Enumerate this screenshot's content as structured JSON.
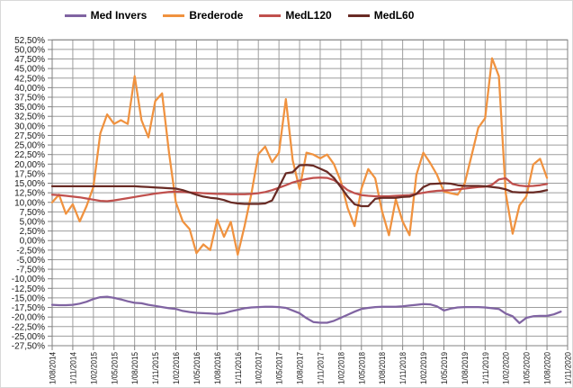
{
  "chart_data": {
    "type": "line",
    "title": "",
    "xlabel": "",
    "ylabel": "",
    "grid": true,
    "legend_position": "top",
    "y_axis": {
      "min": -27.5,
      "max": 52.5,
      "step": 2.5,
      "tick_labels": [
        "52,50%",
        "50,00%",
        "47,50%",
        "45,00%",
        "42,50%",
        "40,00%",
        "37,50%",
        "35,00%",
        "32,50%",
        "30,00%",
        "27,50%",
        "25,00%",
        "22,50%",
        "20,00%",
        "17,50%",
        "15,00%",
        "12,50%",
        "10,00%",
        "7,50%",
        "5,00%",
        "2,50%",
        "0,00%",
        "-2,50%",
        "-5,00%",
        "-7,50%",
        "-10,00%",
        "-12,50%",
        "-15,00%",
        "-17,50%",
        "-20,00%",
        "-22,50%",
        "-25,00%",
        "-27,50%"
      ]
    },
    "x_axis": {
      "unit": "monthly",
      "total_slots": 76,
      "months_per_tick": 3,
      "tick_labels": [
        "1/08/2014",
        "1/11/2014",
        "1/02/2015",
        "1/05/2015",
        "1/08/2015",
        "1/11/2015",
        "1/02/2016",
        "1/05/2016",
        "1/08/2016",
        "1/11/2016",
        "1/02/2017",
        "1/05/2017",
        "1/08/2017",
        "1/11/2017",
        "1/02/2018",
        "1/05/2018",
        "1/08/2018",
        "1/11/2018",
        "1/02/2019",
        "1/05/2019",
        "1/08/2019",
        "1/11/2019",
        "1/02/2020",
        "1/05/2020",
        "1/08/2020",
        "1/11/2020"
      ]
    },
    "series": [
      {
        "name": "Med Invers",
        "color": "#8064A2",
        "values": [
          -16.8,
          -16.9,
          -16.9,
          -16.8,
          -16.5,
          -16.0,
          -15.3,
          -14.8,
          -14.7,
          -15.0,
          -15.4,
          -15.9,
          -16.3,
          -16.4,
          -16.8,
          -17.1,
          -17.4,
          -17.7,
          -17.9,
          -18.4,
          -18.7,
          -18.9,
          -19.0,
          -19.1,
          -19.2,
          -19.0,
          -18.5,
          -18.1,
          -17.7,
          -17.5,
          -17.4,
          -17.3,
          -17.3,
          -17.4,
          -17.6,
          -18.3,
          -19.0,
          -20.3,
          -21.3,
          -21.5,
          -21.5,
          -21.0,
          -20.2,
          -19.4,
          -18.6,
          -17.9,
          -17.6,
          -17.4,
          -17.3,
          -17.3,
          -17.3,
          -17.2,
          -17.0,
          -16.8,
          -16.6,
          -16.7,
          -17.2,
          -18.3,
          -17.8,
          -17.5,
          -17.4,
          -17.4,
          -17.4,
          -17.5,
          -17.7,
          -17.9,
          -19.1,
          -19.8,
          -21.6,
          -20.2,
          -19.8,
          -19.7,
          -19.7,
          -19.3,
          -18.6
        ]
      },
      {
        "name": "Brederode",
        "color": "#F0923F",
        "values": [
          10.0,
          12.0,
          7.0,
          9.5,
          5.0,
          9.0,
          14.0,
          28.0,
          33.0,
          30.5,
          31.5,
          30.5,
          43.0,
          31.5,
          27.0,
          36.5,
          38.5,
          23.0,
          10.0,
          5.0,
          3.0,
          -3.3,
          -1.0,
          -2.5,
          5.5,
          1.0,
          4.9,
          -3.7,
          3.8,
          12.4,
          22.6,
          24.6,
          20.5,
          23.0,
          37.0,
          21.0,
          13.5,
          23.0,
          22.5,
          21.5,
          22.5,
          20.0,
          15.5,
          8.5,
          3.8,
          13.6,
          18.7,
          16.3,
          7.7,
          1.4,
          10.8,
          5.0,
          1.4,
          17.2,
          23.0,
          20.3,
          17.2,
          12.8,
          12.4,
          12.0,
          14.8,
          22.0,
          29.5,
          32.0,
          47.7,
          43.0,
          12.4,
          1.8,
          9.2,
          11.6,
          19.9,
          21.4,
          16.4
        ]
      },
      {
        "name": "MedL120",
        "color": "#C0504D",
        "values": [
          12.0,
          11.9,
          11.7,
          11.5,
          11.3,
          11.0,
          10.7,
          10.4,
          10.3,
          10.5,
          10.8,
          11.1,
          11.4,
          11.7,
          12.0,
          12.3,
          12.5,
          12.7,
          12.8,
          12.7,
          12.6,
          12.5,
          12.4,
          12.3,
          12.2,
          12.2,
          12.1,
          12.1,
          12.1,
          12.2,
          12.4,
          12.7,
          13.2,
          13.8,
          14.5,
          15.2,
          15.7,
          16.1,
          16.4,
          16.5,
          16.4,
          15.8,
          14.6,
          13.2,
          12.4,
          11.9,
          11.7,
          11.6,
          11.6,
          11.6,
          11.7,
          11.8,
          11.9,
          12.2,
          12.5,
          12.8,
          13.0,
          13.1,
          13.2,
          13.4,
          13.6,
          13.8,
          14.0,
          14.1,
          14.6,
          16.0,
          16.3,
          14.8,
          14.4,
          14.2,
          14.3,
          14.5,
          14.8
        ]
      },
      {
        "name": "MedL60",
        "color": "#692B25",
        "values": [
          14.2,
          14.2,
          14.2,
          14.2,
          14.2,
          14.2,
          14.2,
          14.2,
          14.2,
          14.2,
          14.2,
          14.2,
          14.2,
          14.1,
          14.0,
          13.9,
          13.8,
          13.7,
          13.6,
          13.2,
          12.6,
          12.0,
          11.5,
          11.2,
          11.0,
          10.6,
          10.0,
          9.7,
          9.6,
          9.6,
          9.6,
          9.7,
          10.5,
          14.0,
          17.6,
          17.9,
          19.7,
          19.8,
          19.6,
          18.8,
          18.0,
          16.4,
          14.0,
          11.5,
          9.5,
          9.0,
          9.0,
          10.9,
          11.2,
          11.2,
          11.2,
          11.4,
          11.5,
          12.2,
          14.0,
          14.8,
          14.9,
          15.0,
          14.9,
          14.5,
          14.3,
          14.3,
          14.3,
          14.2,
          14.0,
          13.8,
          13.4,
          12.7,
          12.6,
          12.6,
          12.6,
          12.8,
          13.2
        ]
      }
    ],
    "style": {
      "grid_color": "#9d9d9d",
      "axis_color": "#808080",
      "label_color": "#1a1a1a",
      "line_width": 2.25
    }
  }
}
